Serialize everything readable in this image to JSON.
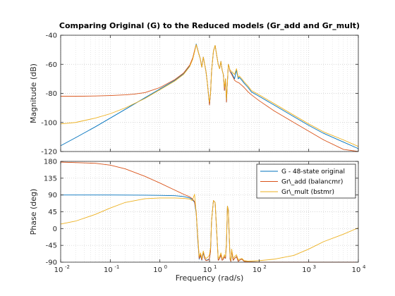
{
  "figure_title": "Comparing Original (G) to the Reduced models (Gr_add and Gr_mult)",
  "chart_data": [
    {
      "type": "line",
      "panel": "magnitude",
      "title": "Comparing Original (G) to the Reduced models (Gr_add and Gr_mult)",
      "ylabel": "Magnitude (dB)",
      "xlabel": "",
      "xscale": "log",
      "xlim": [
        0.01,
        10000
      ],
      "ylim": [
        -120,
        -40
      ],
      "yticks": [
        -120,
        -100,
        -80,
        -60,
        -40
      ],
      "ytick_labels": [
        "-120",
        "-100",
        "-80",
        "-60",
        "-40"
      ],
      "grid": true,
      "series": [
        {
          "name": "G - 48-state original",
          "color": "#0072BD",
          "x": [
            0.01,
            0.02,
            0.05,
            0.1,
            0.2,
            0.5,
            1,
            2,
            3,
            4,
            4.6,
            5,
            5.4,
            6,
            6.5,
            7,
            7.5,
            8,
            8.5,
            9,
            9.5,
            10,
            10.5,
            11,
            12,
            13,
            14,
            15,
            16,
            17,
            18,
            19,
            20,
            21,
            22,
            23,
            24,
            25,
            26,
            28,
            30,
            32,
            35,
            38,
            40,
            45,
            50,
            60,
            70,
            100,
            200,
            500,
            1000,
            2000,
            5000,
            10000
          ],
          "y": [
            -116,
            -110.5,
            -103,
            -97,
            -91,
            -83,
            -77,
            -71,
            -66.5,
            -61,
            -56,
            -51,
            -46,
            -52,
            -56,
            -62,
            -55,
            -60,
            -65,
            -72,
            -80,
            -88,
            -80,
            -65,
            -51,
            -47,
            -54,
            -60,
            -63,
            -58,
            -64,
            -67,
            -78,
            -70,
            -86,
            -72,
            -60,
            -62,
            -65,
            -66,
            -68,
            -70,
            -64,
            -70,
            -69,
            -71,
            -73,
            -76,
            -79,
            -82,
            -88,
            -96,
            -102,
            -107.5,
            -113.5,
            -118
          ]
        },
        {
          "name": "Gr\\_add (balancmr)",
          "color": "#D95319",
          "x": [
            0.01,
            0.02,
            0.05,
            0.1,
            0.2,
            0.3,
            0.5,
            1,
            2,
            3,
            4,
            4.6,
            5,
            5.4,
            6,
            6.5,
            7,
            7.5,
            8,
            8.5,
            9,
            9.5,
            10,
            10.5,
            11,
            12,
            13,
            14,
            15,
            16,
            17,
            18,
            19,
            20,
            21,
            22,
            23,
            24,
            25,
            26,
            28,
            30,
            32,
            35,
            38,
            40,
            45,
            50,
            60,
            70,
            100,
            200,
            500,
            1000,
            2000,
            5000,
            10000
          ],
          "y": [
            -82,
            -82,
            -81.8,
            -81.5,
            -81,
            -80.5,
            -79.5,
            -76,
            -70.5,
            -66,
            -60.5,
            -55.5,
            -50.5,
            -46.5,
            -52,
            -56,
            -62,
            -55,
            -60,
            -65,
            -72,
            -80,
            -88,
            -80,
            -65,
            -51,
            -47,
            -54,
            -60,
            -63,
            -58,
            -64,
            -67,
            -78,
            -70,
            -86,
            -72,
            -60,
            -62,
            -65,
            -67,
            -69,
            -71,
            -72,
            -72.5,
            -73,
            -74.5,
            -76,
            -79,
            -81,
            -85,
            -92,
            -100,
            -106,
            -112,
            -118.5,
            -120
          ]
        },
        {
          "name": "Gr\\_mult (bstmr)",
          "color": "#EDB120",
          "x": [
            0.01,
            0.02,
            0.05,
            0.1,
            0.2,
            0.5,
            1,
            2,
            3,
            4,
            4.6,
            5,
            5.4,
            6,
            6.5,
            7,
            7.5,
            8,
            8.5,
            9,
            9.5,
            10,
            10.5,
            11,
            12,
            13,
            14,
            15,
            16,
            17,
            18,
            19,
            20,
            21,
            22,
            23,
            24,
            25,
            26,
            28,
            30,
            32,
            35,
            38,
            40,
            45,
            50,
            60,
            70,
            100,
            200,
            500,
            1000,
            2000,
            5000,
            10000
          ],
          "y": [
            -101,
            -100,
            -97,
            -94,
            -90,
            -83.5,
            -77.5,
            -71.5,
            -67,
            -61.5,
            -56.5,
            -51.5,
            -46.5,
            -52,
            -56,
            -62,
            -55,
            -60,
            -65,
            -72,
            -80,
            -86,
            -80,
            -65,
            -51,
            -47,
            -54,
            -60,
            -63,
            -58,
            -64,
            -67,
            -76,
            -70,
            -84,
            -72,
            -60,
            -62,
            -64,
            -65,
            -66,
            -67,
            -63,
            -69,
            -68,
            -70,
            -72,
            -75,
            -78,
            -81,
            -87,
            -95,
            -101,
            -106.5,
            -112,
            -116.5
          ]
        }
      ]
    },
    {
      "type": "line",
      "panel": "phase",
      "title": "",
      "ylabel": "Phase (deg)",
      "xlabel": "Frequency  (rad/s)",
      "xscale": "log",
      "xlim": [
        0.01,
        10000
      ],
      "ylim": [
        -90,
        180
      ],
      "yticks": [
        -90,
        -45,
        0,
        45,
        90,
        135,
        180
      ],
      "ytick_labels": [
        "-90",
        "-45",
        "0",
        "45",
        "90",
        "135",
        "180"
      ],
      "xtick_base": "10",
      "xtick_exponents": [
        "-2",
        "-1",
        "0",
        "1",
        "2",
        "3",
        "4"
      ],
      "grid": true,
      "legend": {
        "position": "top-right",
        "entries": [
          "G - 48-state original",
          "Gr\\_add (balancmr)",
          "Gr\\_mult (bstmr)"
        ]
      },
      "series": [
        {
          "name": "G - 48-state original",
          "color": "#0072BD",
          "x": [
            0.01,
            0.1,
            0.5,
            1,
            2,
            3,
            4,
            4.5,
            5,
            5.4,
            5.8,
            6.2,
            6.6,
            7,
            7.5,
            8,
            8.5,
            9,
            9.5,
            10,
            10.5,
            11,
            12,
            13,
            14,
            15,
            16,
            17,
            18,
            19,
            20,
            21,
            22,
            23,
            24,
            25,
            26,
            27,
            28,
            30,
            32,
            35,
            38,
            40,
            45,
            50,
            60,
            100,
            1000,
            10000
          ],
          "y": [
            90,
            90,
            89.5,
            89,
            88,
            86,
            82,
            78,
            70,
            40,
            -30,
            -82,
            -72,
            -85,
            -65,
            -80,
            -85,
            -84,
            -83,
            -80,
            -60,
            20,
            75,
            70,
            -10,
            -85,
            -80,
            -70,
            -85,
            -82,
            -75,
            -80,
            -40,
            60,
            50,
            -20,
            -82,
            -88,
            -60,
            -85,
            -80,
            -75,
            -88,
            -85,
            -82,
            -88,
            -89,
            -90,
            -90,
            -90
          ]
        },
        {
          "name": "Gr\\_add (balancmr)",
          "color": "#D95319",
          "x": [
            0.01,
            0.05,
            0.1,
            0.2,
            0.5,
            1,
            2,
            3,
            4,
            4.5,
            5,
            5.4,
            5.8,
            6.2,
            6.6,
            7,
            7.5,
            8,
            8.5,
            9,
            9.5,
            10,
            10.5,
            11,
            12,
            13,
            14,
            15,
            16,
            17,
            18,
            19,
            20,
            21,
            22,
            23,
            24,
            25,
            26,
            27,
            28,
            30,
            32,
            35,
            38,
            40,
            45,
            50,
            60,
            100,
            1000,
            10000
          ],
          "y": [
            178,
            175,
            170,
            160,
            140,
            122,
            103,
            92,
            85,
            80,
            72,
            45,
            -25,
            -80,
            -70,
            -84,
            -62,
            -80,
            -86,
            -85,
            -84,
            -80,
            -60,
            20,
            75,
            70,
            -10,
            -85,
            -80,
            -70,
            -85,
            -82,
            -75,
            -80,
            -40,
            60,
            50,
            -20,
            -82,
            -88,
            -60,
            -85,
            -80,
            -75,
            -88,
            -85,
            -82,
            -88,
            -89,
            -90,
            -90,
            -90
          ]
        },
        {
          "name": "Gr\\_mult (bstmr)",
          "color": "#EDB120",
          "x": [
            0.01,
            0.02,
            0.05,
            0.1,
            0.2,
            0.5,
            1,
            2,
            3,
            4,
            4.5,
            5,
            5.4,
            5.8,
            6.2,
            6.6,
            7,
            7.5,
            8,
            8.5,
            9,
            9.5,
            10,
            10.5,
            11,
            12,
            13,
            14,
            15,
            16,
            17,
            18,
            19,
            20,
            21,
            22,
            23,
            24,
            25,
            26,
            27,
            28,
            30,
            32,
            35,
            38,
            40,
            45,
            50,
            60,
            100,
            200,
            500,
            1000,
            2000,
            5000,
            10000
          ],
          "y": [
            12,
            20,
            38,
            55,
            70,
            80,
            82,
            82,
            81,
            79,
            75,
            92,
            40,
            -20,
            -75,
            -65,
            -80,
            -60,
            -75,
            -80,
            -78,
            -75,
            -70,
            -50,
            20,
            75,
            70,
            -10,
            -80,
            -75,
            -65,
            -80,
            -78,
            -70,
            -75,
            -35,
            60,
            50,
            -20,
            -78,
            -85,
            -55,
            -80,
            -75,
            -70,
            -84,
            -82,
            -80,
            -86,
            -87,
            -86,
            -82,
            -72,
            -55,
            -35,
            -15,
            2
          ]
        }
      ]
    }
  ]
}
